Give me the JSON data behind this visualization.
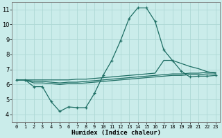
{
  "xlabel": "Humidex (Indice chaleur)",
  "background_color": "#caecea",
  "grid_color": "#aed8d5",
  "line_color": "#1e6e64",
  "xlim": [
    -0.5,
    23.5
  ],
  "ylim": [
    3.5,
    11.5
  ],
  "xticks": [
    0,
    1,
    2,
    3,
    4,
    5,
    6,
    7,
    8,
    9,
    10,
    11,
    12,
    13,
    14,
    15,
    16,
    17,
    18,
    19,
    20,
    21,
    22,
    23
  ],
  "yticks": [
    4,
    5,
    6,
    7,
    8,
    9,
    10,
    11
  ],
  "series_main": [
    6.3,
    6.3,
    5.85,
    5.85,
    4.85,
    4.2,
    4.5,
    4.45,
    4.45,
    5.4,
    6.6,
    7.6,
    8.9,
    10.4,
    11.1,
    11.1,
    10.2,
    8.3,
    7.6,
    6.9,
    6.5,
    6.55,
    6.55,
    6.6
  ],
  "series_line1": [
    6.3,
    6.3,
    6.3,
    6.3,
    6.3,
    6.3,
    6.3,
    6.35,
    6.35,
    6.4,
    6.45,
    6.5,
    6.55,
    6.6,
    6.65,
    6.7,
    6.75,
    7.6,
    7.6,
    7.4,
    7.2,
    7.05,
    6.85,
    6.75
  ],
  "series_line2": [
    6.3,
    6.3,
    6.2,
    6.2,
    6.15,
    6.1,
    6.15,
    6.15,
    6.2,
    6.25,
    6.3,
    6.35,
    6.4,
    6.45,
    6.5,
    6.55,
    6.6,
    6.65,
    6.7,
    6.7,
    6.75,
    6.75,
    6.8,
    6.8
  ],
  "series_line3": [
    6.3,
    6.3,
    6.1,
    6.1,
    6.05,
    6.0,
    6.05,
    6.05,
    6.1,
    6.15,
    6.2,
    6.25,
    6.3,
    6.35,
    6.4,
    6.45,
    6.5,
    6.55,
    6.6,
    6.6,
    6.65,
    6.65,
    6.7,
    6.7
  ]
}
